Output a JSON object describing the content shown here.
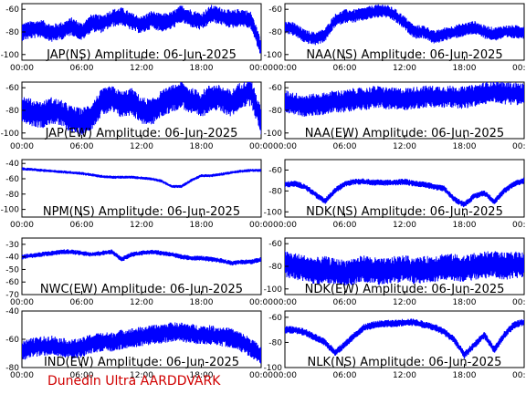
{
  "footer_label": "Dunedin Ultra AARDDVARK",
  "colors": {
    "signal": "#0000ff",
    "footer": "#d00000",
    "axis": "#000000"
  },
  "chart_data": [
    {
      "type": "line",
      "title": "JAP(NS) Amplitude: 06-Jun-2025",
      "x_ticks": [
        "00:00",
        "06:00",
        "12:00",
        "18:00",
        "00:00"
      ],
      "y_ticks": [
        "-60",
        "-80",
        "-100"
      ],
      "ylim": [
        -105,
        -55
      ],
      "x": [
        "00:00",
        "01:00",
        "02:00",
        "03:00",
        "04:00",
        "05:00",
        "06:00",
        "07:00",
        "08:00",
        "09:00",
        "10:00",
        "11:00",
        "12:00",
        "13:00",
        "14:00",
        "15:00",
        "16:00",
        "17:00",
        "18:00",
        "19:00",
        "20:00",
        "21:00",
        "22:00",
        "23:00",
        "24:00"
      ],
      "series": [
        {
          "values": [
            -80,
            -78,
            -77,
            -81,
            -79,
            -75,
            -80,
            -72,
            -73,
            -68,
            -66,
            -71,
            -74,
            -69,
            -72,
            -70,
            -64,
            -68,
            -71,
            -64,
            -66,
            -69,
            -67,
            -70,
            -95
          ],
          "spread": 8
        }
      ]
    },
    {
      "type": "line",
      "title": "NAA(NS) Amplitude: 06-Jun-2025",
      "x_ticks": [
        "00:00",
        "06:00",
        "12:00",
        "18:00",
        "00:00"
      ],
      "y_ticks": [
        "-60",
        "-80",
        "-100"
      ],
      "ylim": [
        -105,
        -55
      ],
      "x": [
        "00:00",
        "01:00",
        "02:00",
        "03:00",
        "04:00",
        "05:00",
        "06:00",
        "07:00",
        "08:00",
        "09:00",
        "10:00",
        "11:00",
        "12:00",
        "13:00",
        "14:00",
        "15:00",
        "16:00",
        "17:00",
        "18:00",
        "19:00",
        "20:00",
        "21:00",
        "22:00",
        "23:00",
        "24:00"
      ],
      "series": [
        {
          "values": [
            -75,
            -78,
            -84,
            -86,
            -83,
            -70,
            -66,
            -66,
            -64,
            -62,
            -61,
            -65,
            -72,
            -80,
            -80,
            -85,
            -82,
            -80,
            -78,
            -76,
            -80,
            -82,
            -80,
            -80,
            -80
          ],
          "spread": 6
        }
      ]
    },
    {
      "type": "line",
      "title": "JAP(EW) Amplitude: 06-Jun-2025",
      "x_ticks": [
        "00:00",
        "06:00",
        "12:00",
        "18:00",
        "00:00"
      ],
      "y_ticks": [
        "-60",
        "-80",
        "-100"
      ],
      "ylim": [
        -105,
        -55
      ],
      "x": [
        "00:00",
        "01:00",
        "02:00",
        "03:00",
        "04:00",
        "05:00",
        "06:00",
        "07:00",
        "08:00",
        "09:00",
        "10:00",
        "11:00",
        "12:00",
        "13:00",
        "14:00",
        "15:00",
        "16:00",
        "17:00",
        "18:00",
        "19:00",
        "20:00",
        "21:00",
        "22:00",
        "23:00",
        "24:00"
      ],
      "series": [
        {
          "values": [
            -78,
            -82,
            -84,
            -80,
            -83,
            -88,
            -90,
            -85,
            -73,
            -70,
            -75,
            -72,
            -80,
            -82,
            -74,
            -70,
            -66,
            -72,
            -75,
            -68,
            -70,
            -74,
            -66,
            -64,
            -90
          ],
          "spread": 12
        }
      ]
    },
    {
      "type": "line",
      "title": "NAA(EW) Amplitude: 06-Jun-2025",
      "x_ticks": [
        "00:00",
        "06:00",
        "12:00",
        "18:00",
        "00:00"
      ],
      "y_ticks": [
        "-60",
        "-80",
        "-100"
      ],
      "ylim": [
        -105,
        -55
      ],
      "x": [
        "00:00",
        "01:00",
        "02:00",
        "03:00",
        "04:00",
        "05:00",
        "06:00",
        "07:00",
        "08:00",
        "09:00",
        "10:00",
        "11:00",
        "12:00",
        "13:00",
        "14:00",
        "15:00",
        "16:00",
        "17:00",
        "18:00",
        "19:00",
        "20:00",
        "21:00",
        "22:00",
        "23:00",
        "24:00"
      ],
      "series": [
        {
          "values": [
            -72,
            -74,
            -76,
            -75,
            -74,
            -72,
            -72,
            -70,
            -70,
            -68,
            -69,
            -70,
            -70,
            -69,
            -68,
            -68,
            -68,
            -68,
            -69,
            -67,
            -65,
            -63,
            -65,
            -65,
            -66
          ],
          "spread": 10
        }
      ]
    },
    {
      "type": "line",
      "title": "NPM(NS) Amplitude: 06-Jun-2025",
      "x_ticks": [
        "00:00",
        "06:00",
        "12:00",
        "18:00",
        "00:00"
      ],
      "y_ticks": [
        "-40",
        "-60",
        "-80",
        "-100"
      ],
      "ylim": [
        -110,
        -35
      ],
      "x": [
        "00:00",
        "01:00",
        "02:00",
        "03:00",
        "04:00",
        "05:00",
        "06:00",
        "07:00",
        "08:00",
        "09:00",
        "10:00",
        "11:00",
        "12:00",
        "13:00",
        "14:00",
        "15:00",
        "16:00",
        "17:00",
        "18:00",
        "19:00",
        "20:00",
        "21:00",
        "22:00",
        "23:00",
        "24:00"
      ],
      "series": [
        {
          "values": [
            -47,
            -48,
            -49,
            -50,
            -51,
            -52,
            -53,
            -55,
            -57,
            -58,
            -58,
            -58,
            -59,
            -60,
            -63,
            -70,
            -70,
            -62,
            -56,
            -56,
            -54,
            -52,
            -50,
            -49,
            -49
          ],
          "spread": 2
        }
      ]
    },
    {
      "type": "line",
      "title": "NDK(NS) Amplitude: 06-Jun-2025",
      "x_ticks": [
        "00:00",
        "06:00",
        "12:00",
        "18:00",
        "00:00"
      ],
      "y_ticks": [
        "-60",
        "-80",
        "-100"
      ],
      "ylim": [
        -105,
        -50
      ],
      "x": [
        "00:00",
        "01:00",
        "02:00",
        "03:00",
        "04:00",
        "05:00",
        "06:00",
        "07:00",
        "08:00",
        "09:00",
        "10:00",
        "11:00",
        "12:00",
        "13:00",
        "14:00",
        "15:00",
        "16:00",
        "17:00",
        "18:00",
        "19:00",
        "20:00",
        "21:00",
        "22:00",
        "23:00",
        "24:00"
      ],
      "series": [
        {
          "values": [
            -74,
            -73,
            -76,
            -83,
            -90,
            -80,
            -73,
            -71,
            -71,
            -72,
            -72,
            -72,
            -71,
            -73,
            -74,
            -76,
            -78,
            -88,
            -93,
            -85,
            -82,
            -90,
            -80,
            -73,
            -70
          ],
          "spread": 3
        }
      ]
    },
    {
      "type": "line",
      "title": "NWC(EW) Amplitude: 06-Jun-2025",
      "x_ticks": [
        "00:00",
        "06:00",
        "12:00",
        "18:00",
        "00:00"
      ],
      "y_ticks": [
        "-30",
        "-40",
        "-50",
        "-60",
        "-70"
      ],
      "ylim": [
        -70,
        -25
      ],
      "x": [
        "00:00",
        "01:00",
        "02:00",
        "03:00",
        "04:00",
        "05:00",
        "06:00",
        "07:00",
        "08:00",
        "09:00",
        "10:00",
        "11:00",
        "12:00",
        "13:00",
        "14:00",
        "15:00",
        "16:00",
        "17:00",
        "18:00",
        "19:00",
        "20:00",
        "21:00",
        "22:00",
        "23:00",
        "24:00"
      ],
      "series": [
        {
          "values": [
            -40,
            -39,
            -38,
            -37,
            -36,
            -36,
            -37,
            -38,
            -37,
            -36,
            -42,
            -38,
            -37,
            -36,
            -37,
            -38,
            -40,
            -41,
            -41,
            -42,
            -43,
            -45,
            -44,
            -44,
            -42
          ],
          "spread": 2
        }
      ]
    },
    {
      "type": "line",
      "title": "NDK(EW) Amplitude: 06-Jun-2025",
      "x_ticks": [
        "00:00",
        "06:00",
        "12:00",
        "18:00",
        "00:00"
      ],
      "y_ticks": [
        "-60",
        "-80",
        "-100"
      ],
      "ylim": [
        -105,
        -55
      ],
      "x": [
        "00:00",
        "01:00",
        "02:00",
        "03:00",
        "04:00",
        "05:00",
        "06:00",
        "07:00",
        "08:00",
        "09:00",
        "10:00",
        "11:00",
        "12:00",
        "13:00",
        "14:00",
        "15:00",
        "16:00",
        "17:00",
        "18:00",
        "19:00",
        "20:00",
        "21:00",
        "22:00",
        "23:00",
        "24:00"
      ],
      "series": [
        {
          "values": [
            -78,
            -80,
            -82,
            -84,
            -83,
            -85,
            -86,
            -84,
            -82,
            -84,
            -85,
            -83,
            -82,
            -84,
            -83,
            -82,
            -80,
            -81,
            -82,
            -80,
            -79,
            -78,
            -80,
            -79,
            -78
          ],
          "spread": 12
        }
      ]
    },
    {
      "type": "line",
      "title": "IND(EW) Amplitude: 06-Jun-2025",
      "x_ticks": [
        "00:00",
        "06:00",
        "12:00",
        "18:00",
        "00:00"
      ],
      "y_ticks": [
        "-40",
        "-60",
        "-80"
      ],
      "ylim": [
        -80,
        -40
      ],
      "x": [
        "00:00",
        "01:00",
        "02:00",
        "03:00",
        "04:00",
        "05:00",
        "06:00",
        "07:00",
        "08:00",
        "09:00",
        "10:00",
        "11:00",
        "12:00",
        "13:00",
        "14:00",
        "15:00",
        "16:00",
        "17:00",
        "18:00",
        "19:00",
        "20:00",
        "21:00",
        "22:00",
        "23:00",
        "24:00"
      ],
      "series": [
        {
          "values": [
            -68,
            -66,
            -65,
            -64,
            -66,
            -67,
            -66,
            -63,
            -62,
            -62,
            -60,
            -59,
            -58,
            -57,
            -56,
            -55,
            -55,
            -56,
            -57,
            -57,
            -58,
            -59,
            -62,
            -66,
            -72
          ],
          "spread": 7
        }
      ]
    },
    {
      "type": "line",
      "title": "NLK(NS) Amplitude: 06-Jun-2025",
      "x_ticks": [
        "00:00",
        "06:00",
        "12:00",
        "18:00",
        "00:00"
      ],
      "y_ticks": [
        "-60",
        "-80",
        "-100"
      ],
      "ylim": [
        -100,
        -55
      ],
      "x": [
        "00:00",
        "01:00",
        "02:00",
        "03:00",
        "04:00",
        "05:00",
        "06:00",
        "07:00",
        "08:00",
        "09:00",
        "10:00",
        "11:00",
        "12:00",
        "13:00",
        "14:00",
        "15:00",
        "16:00",
        "17:00",
        "18:00",
        "19:00",
        "20:00",
        "21:00",
        "22:00",
        "23:00",
        "24:00"
      ],
      "series": [
        {
          "values": [
            -70,
            -70,
            -72,
            -76,
            -80,
            -88,
            -82,
            -74,
            -68,
            -66,
            -65,
            -65,
            -64,
            -64,
            -66,
            -68,
            -72,
            -78,
            -90,
            -82,
            -74,
            -86,
            -74,
            -66,
            -64
          ],
          "spread": 3
        }
      ]
    }
  ]
}
